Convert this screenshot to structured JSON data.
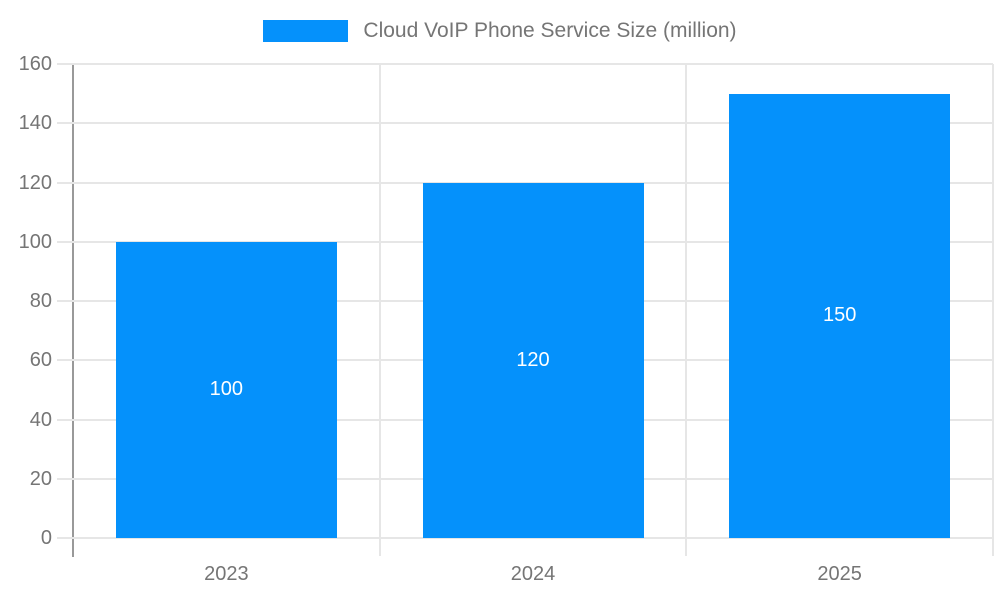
{
  "legend": {
    "label": "Cloud VoIP Phone Service Size (million)"
  },
  "chart_data": {
    "type": "bar",
    "title": "Cloud VoIP Phone Service Size (million)",
    "categories": [
      "2023",
      "2024",
      "2025"
    ],
    "values": [
      100,
      120,
      150
    ],
    "value_labels": [
      "100",
      "120",
      "150"
    ],
    "xlabel": "",
    "ylabel": "",
    "ylim": [
      0,
      160
    ],
    "ytick_interval": 20,
    "yticks": [
      0,
      20,
      40,
      60,
      80,
      100,
      120,
      140,
      160
    ],
    "grid": true,
    "legend_position": "top-center"
  },
  "colors": {
    "bar": "#0591fb",
    "gridline": "#e6e6e6",
    "axis_line": "#999999",
    "axis_text": "#757575",
    "legend_text": "#757575",
    "bar_value_text": "#ffffff",
    "background": "#ffffff"
  }
}
